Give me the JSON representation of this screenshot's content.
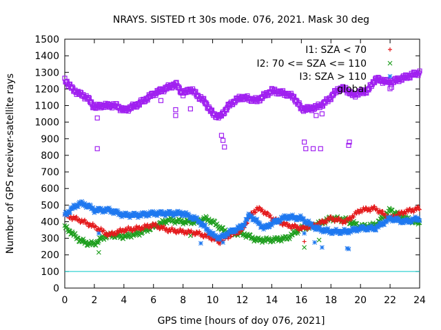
{
  "chart_data": {
    "type": "scatter",
    "title": "NRAYS. SISTED rt 30s mode. 076, 2021. Mask 30 deg",
    "xlabel": "GPS time [hours of doy 076, 2021]",
    "ylabel": "Number of GPS receiver-satellite rays",
    "xlim": [
      0,
      24
    ],
    "ylim": [
      0,
      1500
    ],
    "xticks": [
      0,
      2,
      4,
      6,
      8,
      10,
      12,
      14,
      16,
      18,
      20,
      22,
      24
    ],
    "yticks": [
      0,
      100,
      200,
      300,
      400,
      500,
      600,
      700,
      800,
      900,
      1000,
      1100,
      1200,
      1300,
      1400,
      1500
    ],
    "grid": false,
    "legend_position": "top-right",
    "reference_line": {
      "y": 100,
      "color": "#00c8c8"
    },
    "series": [
      {
        "name": "I1: SZA < 70",
        "marker": "+",
        "color": "#e41a1c",
        "x": [
          0,
          1,
          2,
          3,
          4,
          5,
          6,
          7,
          8,
          9,
          10,
          10.5,
          11,
          12,
          12.5,
          13,
          13.5,
          14,
          15,
          16,
          17,
          18,
          19,
          20,
          21,
          22,
          23,
          24
        ],
        "y": [
          440,
          410,
          370,
          320,
          350,
          360,
          380,
          350,
          340,
          330,
          300,
          280,
          310,
          350,
          430,
          480,
          460,
          420,
          380,
          360,
          380,
          420,
          400,
          470,
          480,
          420,
          460,
          480
        ]
      },
      {
        "name": "I2: 70 <= SZA <= 110",
        "marker": "x",
        "color": "#1e9e1e",
        "x": [
          0,
          0.5,
          1,
          1.5,
          2,
          2.5,
          3,
          4,
          5,
          6,
          7,
          8,
          9,
          9.5,
          10,
          11,
          12,
          13,
          14,
          15,
          16,
          16.5,
          17,
          18,
          19,
          20,
          21,
          22,
          23,
          24
        ],
        "y": [
          370,
          330,
          290,
          270,
          265,
          300,
          320,
          310,
          330,
          370,
          410,
          400,
          400,
          420,
          400,
          330,
          330,
          290,
          290,
          300,
          360,
          370,
          380,
          420,
          410,
          370,
          380,
          470,
          420,
          390
        ]
      },
      {
        "name": "I3: SZA > 110",
        "marker": "*",
        "color": "#1e78f0",
        "x": [
          0,
          0.5,
          1,
          1.5,
          2,
          3,
          4,
          5,
          6,
          7,
          8,
          9,
          10,
          10.5,
          11,
          12,
          12.5,
          13,
          13.5,
          14,
          15,
          16,
          17,
          18,
          19,
          20,
          21,
          22,
          23,
          24
        ],
        "y": [
          440,
          480,
          510,
          500,
          470,
          470,
          440,
          440,
          450,
          450,
          450,
          410,
          320,
          300,
          330,
          370,
          440,
          400,
          360,
          390,
          430,
          420,
          360,
          340,
          340,
          360,
          360,
          420,
          400,
          420
        ]
      },
      {
        "name": "global",
        "marker": "square",
        "color": "#a020f0",
        "x": [
          0,
          0.5,
          1,
          1.5,
          2,
          2.5,
          3,
          3.5,
          4,
          5,
          6,
          7,
          7.5,
          8,
          8.5,
          9,
          9.5,
          10,
          10.5,
          11,
          11.5,
          12,
          13,
          14,
          15,
          15.5,
          16,
          16.5,
          17,
          17.5,
          18,
          18.5,
          19,
          19.5,
          20,
          20.5,
          21,
          22,
          23,
          24
        ],
        "y": [
          1260,
          1200,
          1170,
          1150,
          1090,
          1100,
          1100,
          1100,
          1070,
          1110,
          1170,
          1210,
          1230,
          1170,
          1200,
          1160,
          1120,
          1050,
          1030,
          1090,
          1130,
          1150,
          1130,
          1190,
          1170,
          1150,
          1080,
          1080,
          1090,
          1110,
          1150,
          1200,
          1200,
          1160,
          1180,
          1190,
          1260,
          1240,
          1270,
          1300
        ]
      }
    ],
    "outliers": [
      {
        "series": "global",
        "x": [
          2.2,
          2.2,
          6.5,
          7.5,
          7.5,
          8.5,
          10.6,
          10.7,
          10.8,
          16.2,
          16.3,
          16.8,
          17.0,
          17.3,
          17.4,
          19.2,
          19.25,
          22.1
        ],
        "y": [
          840,
          1025,
          1130,
          1075,
          1040,
          1080,
          920,
          890,
          850,
          880,
          840,
          840,
          1040,
          840,
          1050,
          860,
          880,
          1210
        ]
      },
      {
        "series": "I1: SZA < 70",
        "x": [
          10.4,
          16.2
        ],
        "y": [
          270,
          280
        ]
      },
      {
        "series": "I2: 70 <= SZA <= 110",
        "x": [
          2.3,
          8.5,
          16.2,
          17.2
        ],
        "y": [
          215,
          315,
          245,
          290
        ]
      },
      {
        "series": "I3: SZA > 110",
        "x": [
          2.3,
          9.2,
          10.7,
          16.2,
          16.9,
          17.4,
          19.1,
          19.2
        ],
        "y": [
          330,
          270,
          275,
          330,
          275,
          245,
          240,
          235
        ]
      }
    ]
  }
}
